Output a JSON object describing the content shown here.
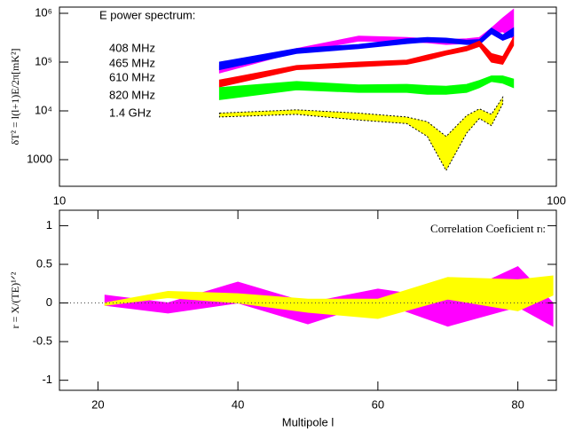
{
  "chart_data": [
    {
      "type": "band",
      "title": "E power spectrum:",
      "y_label": "δT² = l(l+1)E/2π[mK²]",
      "xscale": "log",
      "yscale": "log",
      "xlim": [
        10,
        100
      ],
      "ylim": [
        285,
        1340000
      ],
      "xticks": [
        10,
        100
      ],
      "yticks": [
        {
          "value": 1000000,
          "label": "10⁶"
        },
        {
          "value": 100000,
          "label": "10⁵"
        },
        {
          "value": 10000,
          "label": "10⁴"
        },
        1000
      ],
      "x": [
        21,
        30,
        40,
        50,
        55,
        60,
        66,
        70,
        74,
        78,
        82
      ],
      "series": [
        {
          "name": "408 MHz",
          "color": "#ff00ff",
          "lower": [
            60000,
            160000,
            270000,
            260000,
            250000,
            230000,
            240000,
            260000,
            380000,
            420000,
            300000
          ],
          "upper": [
            85000,
            190000,
            340000,
            320000,
            300000,
            290000,
            300000,
            320000,
            500000,
            800000,
            1200000
          ]
        },
        {
          "name": "465 MHz",
          "color": "#0000ff",
          "lower": [
            70000,
            150000,
            190000,
            240000,
            260000,
            250000,
            230000,
            230000,
            380000,
            280000,
            340000
          ],
          "upper": [
            100000,
            190000,
            230000,
            300000,
            320000,
            310000,
            280000,
            290000,
            500000,
            360000,
            500000
          ]
        },
        {
          "name": "610 MHz",
          "color": "#ff0000",
          "lower": [
            31000,
            70000,
            80000,
            90000,
            110000,
            140000,
            170000,
            210000,
            100000,
            90000,
            220000
          ],
          "upper": [
            43000,
            85000,
            100000,
            110000,
            140000,
            170000,
            210000,
            270000,
            150000,
            130000,
            320000
          ]
        },
        {
          "name": "820 MHz",
          "color": "#00ff00",
          "lower": [
            17000,
            27000,
            24000,
            24000,
            22000,
            22000,
            24000,
            30000,
            40000,
            37000,
            30000
          ],
          "upper": [
            30000,
            40000,
            34000,
            35000,
            33000,
            32000,
            35000,
            42000,
            52000,
            52000,
            45000
          ]
        },
        {
          "name": "1.4 GHz",
          "color": "#ffff00",
          "outline": "dotted",
          "lower": [
            7500,
            8500,
            6500,
            5500,
            3000,
            600,
            3500,
            7000,
            5000,
            14000,
            null
          ],
          "upper": [
            9000,
            10500,
            9000,
            7500,
            6000,
            3000,
            8000,
            11000,
            8500,
            19000,
            null
          ]
        }
      ]
    },
    {
      "type": "band",
      "title": "Correlation Coeficient rₗ:",
      "y_label": "r = X/(TE)¹ᐟ²",
      "x_label": "Multipole l",
      "zero_line": true,
      "xlim": [
        14.5,
        85.5
      ],
      "ylim": [
        -1.13,
        1.2
      ],
      "xticks": [
        20,
        40,
        60,
        80
      ],
      "yticks": [
        1,
        0.5,
        0,
        -0.5,
        -1
      ],
      "x": [
        21,
        30,
        40,
        50,
        60,
        70,
        80,
        85
      ],
      "series": [
        {
          "color": "#ff00ff",
          "lower": [
            -0.03,
            -0.13,
            0.0,
            -0.27,
            0.02,
            -0.3,
            -0.05,
            -0.3
          ],
          "upper": [
            0.1,
            0.0,
            0.27,
            0.0,
            0.18,
            0.05,
            0.47,
            0.0
          ]
        },
        {
          "color": "#ffff00",
          "lower": [
            -0.03,
            0.07,
            0.0,
            -0.12,
            -0.2,
            0.05,
            -0.1,
            0.1
          ],
          "upper": [
            0.0,
            0.15,
            0.12,
            0.05,
            0.05,
            0.33,
            0.3,
            0.35
          ]
        }
      ]
    }
  ]
}
